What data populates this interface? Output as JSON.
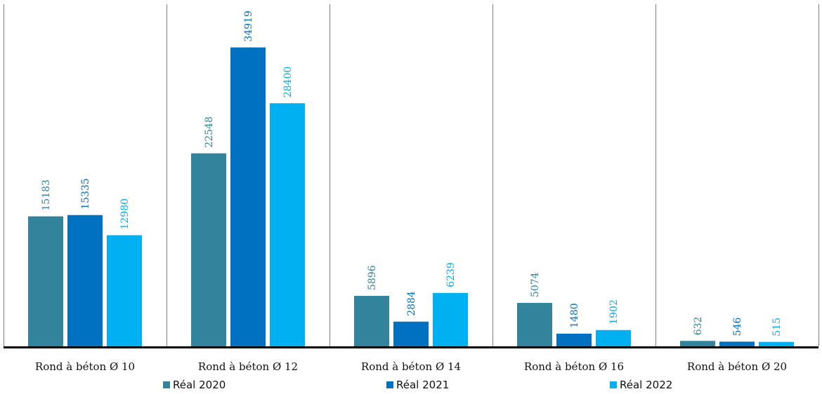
{
  "chart_data": {
    "type": "bar",
    "title": "",
    "xlabel": "",
    "ylabel": "",
    "ylim": [
      0,
      37000
    ],
    "grid": false,
    "legend_position": "bottom",
    "categories": [
      "Rond à béton Ø 10",
      "Rond à béton Ø 12",
      "Rond à béton Ø 14",
      "Rond à béton Ø 16",
      "Rond à béton Ø 20"
    ],
    "series": [
      {
        "name": "Réal 2020",
        "color": "#31849b",
        "label_color": "#31849b",
        "values": [
          15183,
          22548,
          5896,
          5074,
          632
        ]
      },
      {
        "name": "Réal 2021",
        "color": "#0070c0",
        "label_color": "#0070c0",
        "values": [
          15335,
          34919,
          2884,
          1480,
          546
        ]
      },
      {
        "name": "Réal 2022",
        "color": "#00b0f0",
        "label_color": "#00b0f0",
        "values": [
          12980,
          28400,
          6239,
          1902,
          515
        ]
      }
    ]
  }
}
